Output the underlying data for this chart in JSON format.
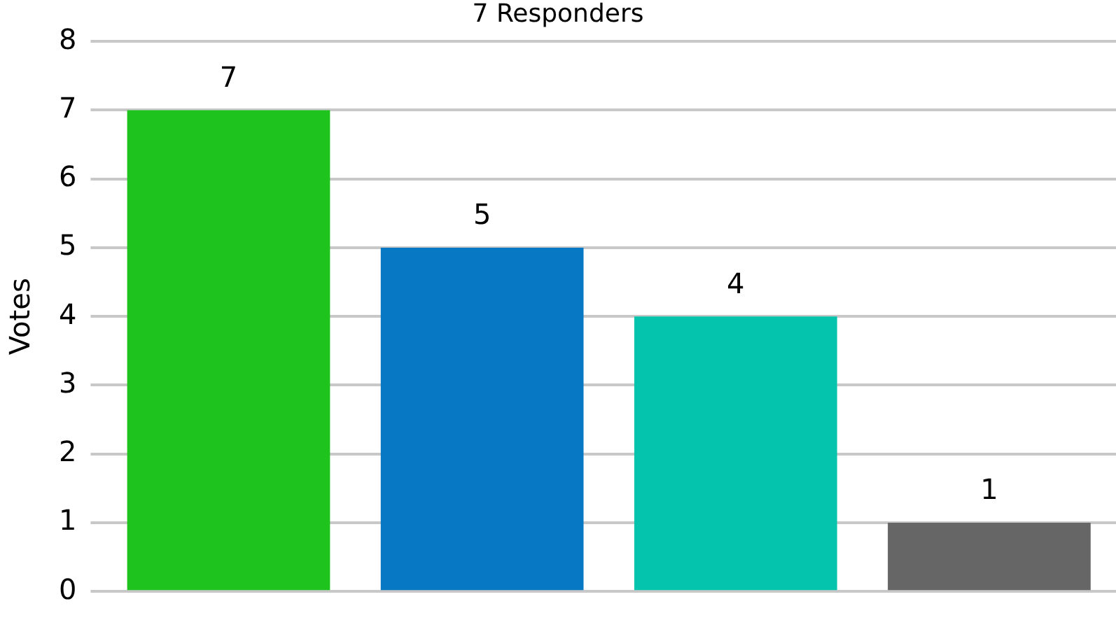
{
  "chart_data": {
    "type": "bar",
    "title": "7 Responders",
    "ylabel": "Votes",
    "categories": [
      null,
      null,
      null,
      null
    ],
    "values": [
      7,
      5,
      4,
      1
    ],
    "colors": [
      "#1ec31e",
      "#0779c4",
      "#04c4ad",
      "#666666"
    ],
    "ylim": [
      0,
      8
    ],
    "yticks": [
      0,
      1,
      2,
      3,
      4,
      5,
      6,
      7,
      8
    ],
    "grid": "y",
    "data_labels": true,
    "legend": false
  }
}
